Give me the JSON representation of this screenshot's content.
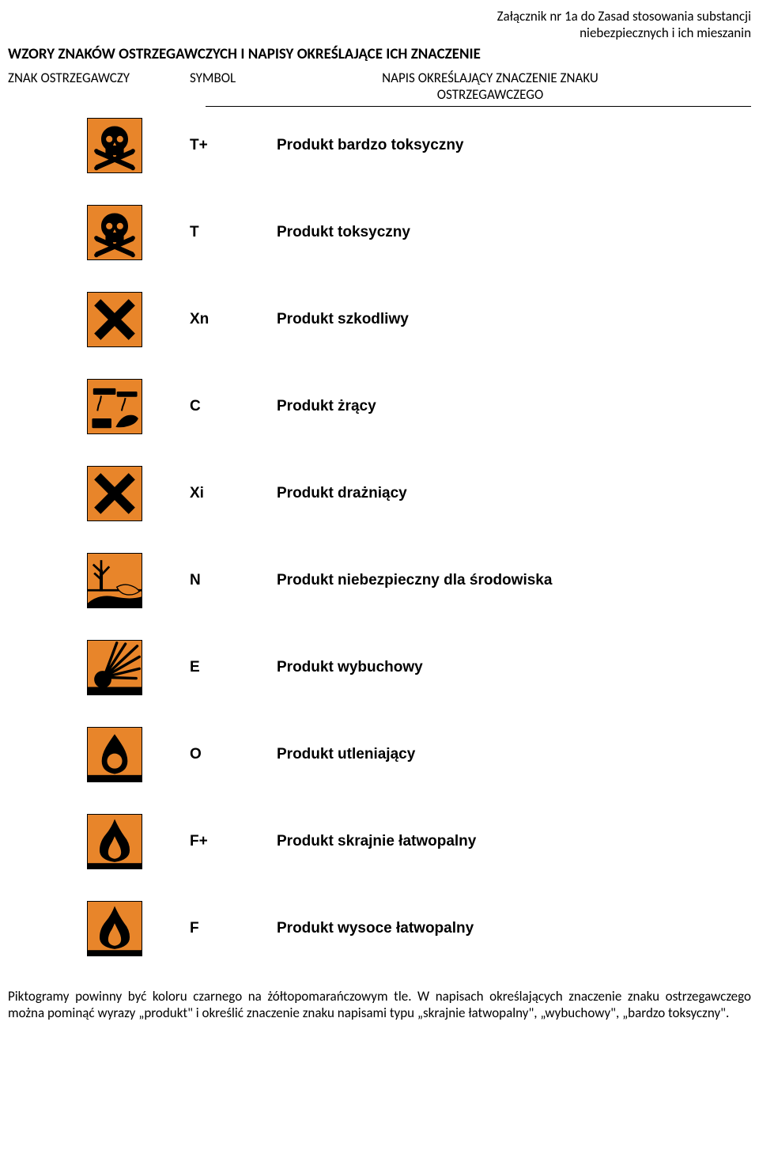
{
  "attachment_line1": "Załącznik nr 1a do Zasad stosowania substancji",
  "attachment_line2": "niebezpiecznych i ich mieszanin",
  "title": "WZORY ZNAKÓW OSTRZEGAWCZYCH I NAPISY OKREŚLAJĄCE ICH ZNACZENIE",
  "header_col1": "ZNAK OSTRZEGAWCZY",
  "header_col2": "SYMBOL",
  "header_col3_line1": "NAPIS OKREŚLAJĄCY ZNACZENIE ZNAKU",
  "header_col3_line2": "OSTRZEGAWCZEGO",
  "pictogram_bg": "#e8852a",
  "pictogram_fg": "#000000",
  "rows": [
    {
      "icon": "skull",
      "symbol": "T+",
      "desc": "Produkt bardzo toksyczny"
    },
    {
      "icon": "skull",
      "symbol": "T",
      "desc": "Produkt toksyczny"
    },
    {
      "icon": "cross",
      "symbol": "Xn",
      "desc": "Produkt szkodliwy"
    },
    {
      "icon": "corrosive",
      "symbol": "C",
      "desc": "Produkt żrący"
    },
    {
      "icon": "cross",
      "symbol": "Xi",
      "desc": "Produkt drażniący"
    },
    {
      "icon": "env",
      "symbol": "N",
      "desc": "Produkt niebezpieczny dla środowiska"
    },
    {
      "icon": "explosive",
      "symbol": "E",
      "desc": "Produkt wybuchowy"
    },
    {
      "icon": "oxidizer",
      "symbol": "O",
      "desc": "Produkt utleniający"
    },
    {
      "icon": "flame",
      "symbol": "F+",
      "desc": "Produkt skrajnie łatwopalny"
    },
    {
      "icon": "flame",
      "symbol": "F",
      "desc": "Produkt wysoce łatwopalny"
    }
  ],
  "footer": "Piktogramy powinny być koloru czarnego na żółtopomarańczowym tle. W napisach określających znaczenie znaku ostrzegawczego można pominąć wyrazy „produkt\" i określić znaczenie znaku napisami typu „skrajnie łatwopalny\", „wybuchowy\", „bardzo toksyczny\"."
}
